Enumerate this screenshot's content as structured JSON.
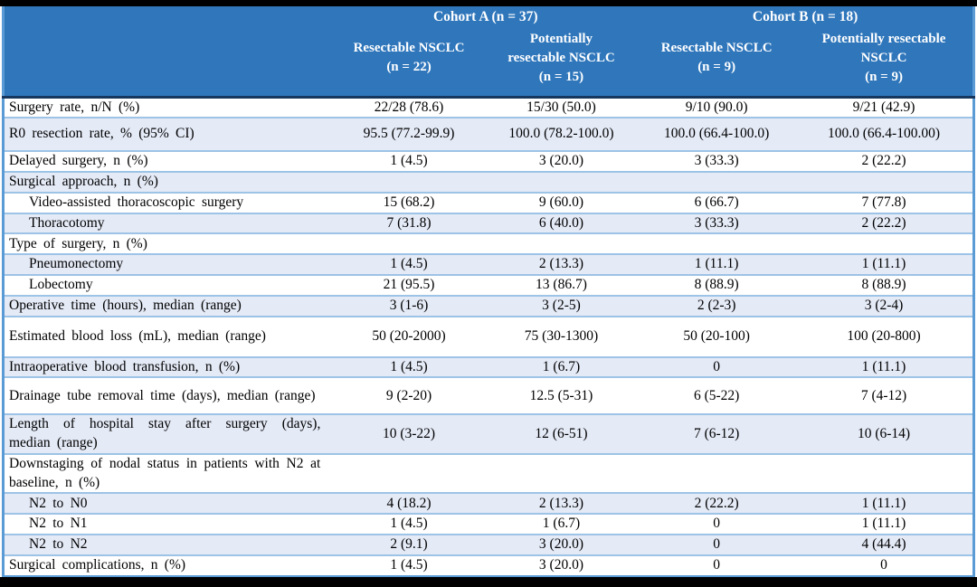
{
  "table": {
    "header": {
      "cohort_a": "Cohort A (n = 37)",
      "cohort_b": "Cohort B (n = 18)",
      "subcolumns": [
        "Resectable NSCLC\n(n = 22)",
        "Potentially\nresectable NSCLC\n(n = 15)",
        "Resectable NSCLC\n(n = 9)",
        "Potentially resectable\nNSCLC\n(n = 9)"
      ]
    },
    "rows": [
      {
        "label": "Surgery rate, n/N (%)",
        "indent": false,
        "values": [
          "22/28 (78.6)",
          "15/30 (50.0)",
          "9/10 (90.0)",
          "9/21 (42.9)"
        ]
      },
      {
        "label": "R0 resection rate, % (95% CI)",
        "indent": false,
        "values": [
          "95.5 (77.2-99.9)",
          "100.0 (78.2-100.0)",
          "100.0 (66.4-100.0)",
          "100.0 (66.4-100.00)"
        ]
      },
      {
        "label": "Delayed surgery, n (%)",
        "indent": false,
        "values": [
          "1 (4.5)",
          "3 (20.0)",
          "3 (33.3)",
          "2 (22.2)"
        ]
      },
      {
        "label": "Surgical approach, n (%)",
        "indent": false,
        "values": [
          "",
          "",
          "",
          ""
        ]
      },
      {
        "label": "Video-assisted thoracoscopic surgery",
        "indent": true,
        "values": [
          "15 (68.2)",
          "9 (60.0)",
          "6 (66.7)",
          "7 (77.8)"
        ]
      },
      {
        "label": "Thoracotomy",
        "indent": true,
        "values": [
          "7 (31.8)",
          "6 (40.0)",
          "3 (33.3)",
          "2 (22.2)"
        ]
      },
      {
        "label": "Type of surgery, n (%)",
        "indent": false,
        "values": [
          "",
          "",
          "",
          ""
        ]
      },
      {
        "label": "Pneumonectomy",
        "indent": true,
        "values": [
          "1 (4.5)",
          "2 (13.3)",
          "1 (11.1)",
          "1 (11.1)"
        ]
      },
      {
        "label": "Lobectomy",
        "indent": true,
        "values": [
          "21 (95.5)",
          "13 (86.7)",
          "8 (88.9)",
          "8 (88.9)"
        ]
      },
      {
        "label": "Operative time (hours), median (range)",
        "indent": false,
        "values": [
          "3 (1-6)",
          "3 (2-5)",
          "2 (2-3)",
          "3 (2-4)"
        ]
      },
      {
        "label": "Estimated blood loss (mL), median (range)",
        "indent": false,
        "values": [
          "50 (20-2000)",
          "75 (30-1300)",
          "50 (20-100)",
          "100 (20-800)"
        ]
      },
      {
        "label": "Intraoperative blood transfusion, n (%)",
        "indent": false,
        "values": [
          "1 (4.5)",
          "1 (6.7)",
          "0",
          "1 (11.1)"
        ]
      },
      {
        "label": "Drainage tube removal time (days), median (range)",
        "indent": false,
        "values": [
          "9 (2-20)",
          "12.5 (5-31)",
          "6 (5-22)",
          "7 (4-12)"
        ]
      },
      {
        "label": "Length of hospital stay after surgery (days), median (range)",
        "indent": false,
        "values": [
          "10 (3-22)",
          "12 (6-51)",
          "7 (6-12)",
          "10 (6-14)"
        ]
      },
      {
        "label": "Downstaging of nodal status in patients with N2 at baseline, n (%)",
        "indent": false,
        "values": [
          "",
          "",
          "",
          ""
        ]
      },
      {
        "label": "N2 to N0",
        "indent": true,
        "values": [
          "4 (18.2)",
          "2 (13.3)",
          "2 (22.2)",
          "1 (11.1)"
        ]
      },
      {
        "label": "N2 to N1",
        "indent": true,
        "values": [
          "1 (4.5)",
          "1 (6.7)",
          "0",
          "1 (11.1)"
        ]
      },
      {
        "label": "N2 to N2",
        "indent": true,
        "values": [
          "2 (9.1)",
          "3 (20.0)",
          "0",
          "4 (44.4)"
        ]
      },
      {
        "label": "Surgical complications, n (%)",
        "indent": false,
        "values": [
          "1 (4.5)",
          "3 (20.0)",
          "0",
          "0"
        ]
      }
    ],
    "colors": {
      "header_bg": "#2F76BB",
      "stripe_bg": "#E4EAF6",
      "row_border": "#9DC3E6",
      "outer_border": "#5B9BD5",
      "header_divider": "#17365D",
      "frame": "#000000"
    }
  }
}
